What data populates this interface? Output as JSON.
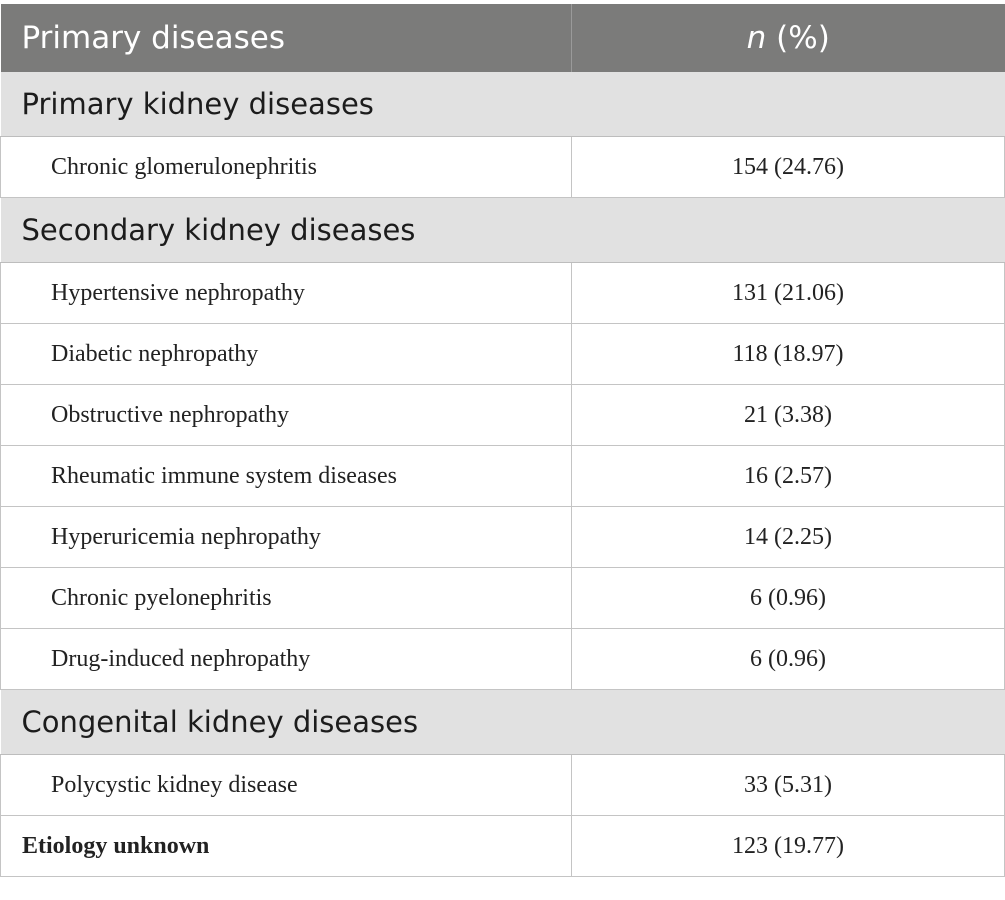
{
  "table": {
    "header": {
      "col1": "Primary diseases",
      "col2_italic": "n",
      "col2_rest": " (%)"
    },
    "sections": [
      {
        "title": "Primary kidney diseases",
        "rows": [
          {
            "label": "Chronic glomerulonephritis",
            "value": "154 (24.76)"
          }
        ]
      },
      {
        "title": "Secondary kidney diseases",
        "rows": [
          {
            "label": "Hypertensive nephropathy",
            "value": "131 (21.06)"
          },
          {
            "label": "Diabetic nephropathy",
            "value": "118 (18.97)"
          },
          {
            "label": "Obstructive nephropathy",
            "value": "21 (3.38)"
          },
          {
            "label": "Rheumatic immune system diseases",
            "value": "16 (2.57)"
          },
          {
            "label": "Hyperuricemia nephropathy",
            "value": "14 (2.25)"
          },
          {
            "label": "Chronic pyelonephritis",
            "value": "6 (0.96)"
          },
          {
            "label": "Drug-induced nephropathy",
            "value": "6 (0.96)"
          }
        ]
      },
      {
        "title": "Congenital kidney diseases",
        "rows": [
          {
            "label": "Polycystic kidney disease",
            "value": "33 (5.31)"
          }
        ]
      }
    ],
    "footer_row": {
      "label": "Etiology unknown",
      "value": "123 (19.77)"
    }
  }
}
